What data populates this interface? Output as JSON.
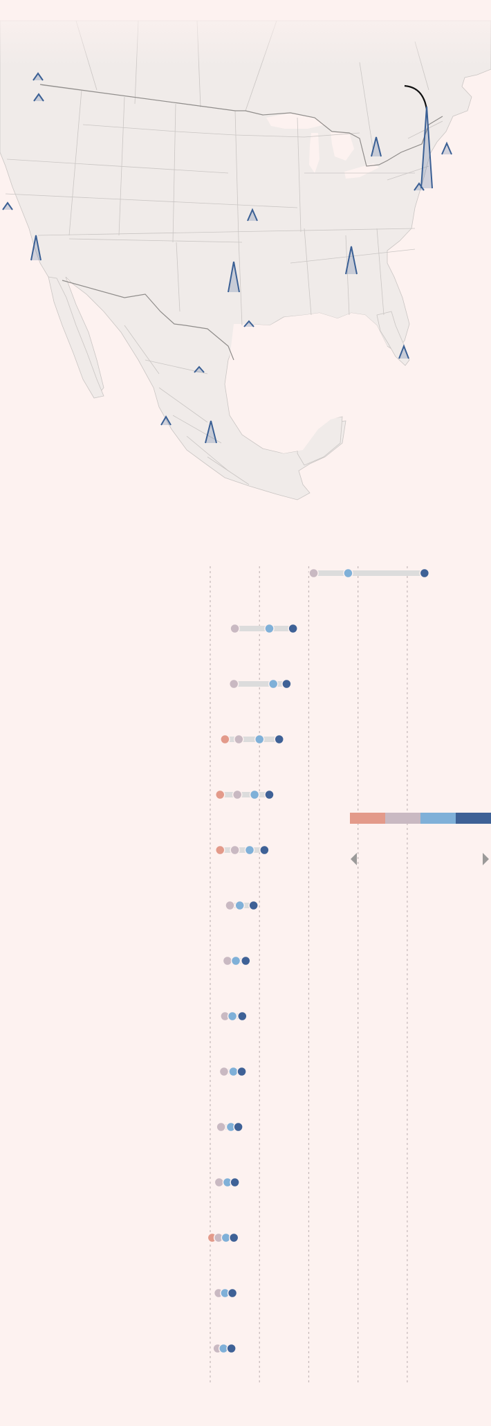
{
  "map": {
    "colors": {
      "ocean": "#fdf2f0",
      "land": "#f0ebe9",
      "state_border": "#c9c5c3",
      "country_border": "#8f8c8a",
      "spike_stroke": "#3a5f94",
      "spike_fill": "rgba(58,95,148,0.22)",
      "callout": "#111111"
    }
  },
  "chart_data": {
    "type": "dot-range",
    "title": "",
    "xlabel": "",
    "ylabel": "",
    "categories": [
      "",
      "",
      "",
      "",
      "",
      "",
      "",
      "",
      "",
      "",
      "",
      "",
      "",
      "",
      ""
    ],
    "series": [
      {
        "color": "#e39a8a",
        "values": [
          null,
          null,
          null,
          0.3,
          0.2,
          0.2,
          null,
          null,
          null,
          null,
          null,
          null,
          0.04,
          null,
          null
        ]
      },
      {
        "color": "#c9b9c2",
        "values": [
          2.1,
          0.5,
          0.48,
          0.58,
          0.55,
          0.5,
          0.4,
          0.35,
          0.3,
          0.28,
          0.22,
          0.18,
          0.17,
          0.17,
          0.15
        ]
      },
      {
        "color": "#7fb0d8",
        "values": [
          2.8,
          1.2,
          1.28,
          1.0,
          0.9,
          0.8,
          0.6,
          0.52,
          0.45,
          0.47,
          0.42,
          0.35,
          0.32,
          0.3,
          0.27
        ]
      },
      {
        "color": "#3e6196",
        "values": [
          4.35,
          1.68,
          1.55,
          1.4,
          1.2,
          1.1,
          0.88,
          0.72,
          0.65,
          0.64,
          0.57,
          0.5,
          0.48,
          0.45,
          0.43
        ]
      }
    ],
    "xlim": [
      0,
      5.7
    ],
    "gridlines": [
      0,
      1,
      2,
      3,
      4
    ],
    "colors": {
      "grid": "#c4b8b8",
      "track": "#dcdcdc"
    },
    "legend": {
      "colors": [
        "#e39a8a",
        "#c9b9c2",
        "#7fb0d8",
        "#3e6196"
      ],
      "placement": "right"
    }
  },
  "controls": {
    "prev_icon": "triangle-left-icon",
    "next_icon": "triangle-right-icon"
  }
}
